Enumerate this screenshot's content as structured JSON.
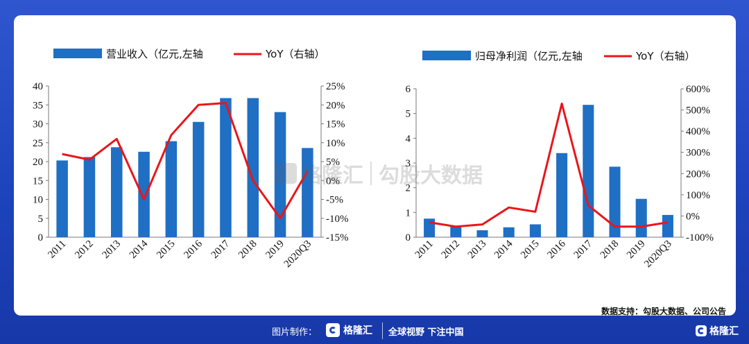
{
  "source_note": "数据支持：勾股大数据、公司公告",
  "watermark": {
    "brand": "格隆汇",
    "text": "勾股大数据"
  },
  "footer": {
    "made_by": "图片制作：",
    "brand": "格隆汇",
    "slogan": "全球视野 下注中国",
    "corner_brand": "格隆汇"
  },
  "colors": {
    "bar": "#1f6fc4",
    "line": "#e8161b"
  },
  "chart_data": [
    {
      "type": "bar",
      "legend": {
        "bar_label": "营业收入（亿元,左轴",
        "line_label": "YoY（右轴）"
      },
      "categories": [
        "2011",
        "2012",
        "2013",
        "2014",
        "2015",
        "2016",
        "2017",
        "2018",
        "2019",
        "2020Q3"
      ],
      "series": [
        {
          "name": "营业收入（亿元,左轴",
          "axis": "left",
          "values": [
            20.3,
            21.2,
            23.8,
            22.6,
            25.4,
            30.5,
            36.8,
            36.8,
            33.1,
            23.6
          ]
        },
        {
          "name": "YoY（右轴）",
          "axis": "right",
          "type": "line",
          "values": [
            7.0,
            5.5,
            11.0,
            -5.0,
            12.0,
            20.0,
            20.5,
            0,
            -10.0,
            2.5
          ]
        }
      ],
      "left_axis": {
        "min": 0,
        "max": 40,
        "ticks": [
          "0",
          "5",
          "10",
          "15",
          "20",
          "25",
          "30",
          "35",
          "40"
        ]
      },
      "right_axis": {
        "min": -15,
        "max": 25,
        "ticks": [
          "-15%",
          "-10%",
          "-5%",
          "0%",
          "5%",
          "10%",
          "15%",
          "20%",
          "25%"
        ]
      }
    },
    {
      "type": "bar",
      "legend": {
        "bar_label": "归母净利润（亿元,左轴",
        "line_label": "YoY（右轴）"
      },
      "categories": [
        "2011",
        "2012",
        "2013",
        "2014",
        "2015",
        "2016",
        "2017",
        "2018",
        "2019",
        "2020Q3"
      ],
      "series": [
        {
          "name": "归母净利润（亿元,左轴",
          "axis": "left",
          "values": [
            0.75,
            0.45,
            0.28,
            0.4,
            0.52,
            3.4,
            5.35,
            2.85,
            1.55,
            0.9
          ]
        },
        {
          "name": "YoY（右轴）",
          "axis": "right",
          "type": "line",
          "values": [
            -30,
            -50,
            -40,
            40,
            20,
            530,
            50,
            -50,
            -50,
            -30
          ]
        }
      ],
      "left_axis": {
        "min": 0,
        "max": 6,
        "ticks": [
          "0",
          "1",
          "2",
          "3",
          "4",
          "5",
          "6"
        ]
      },
      "right_axis": {
        "min": -100,
        "max": 600,
        "ticks": [
          "-100%",
          "0%",
          "100%",
          "200%",
          "300%",
          "400%",
          "500%",
          "600%"
        ]
      }
    }
  ]
}
